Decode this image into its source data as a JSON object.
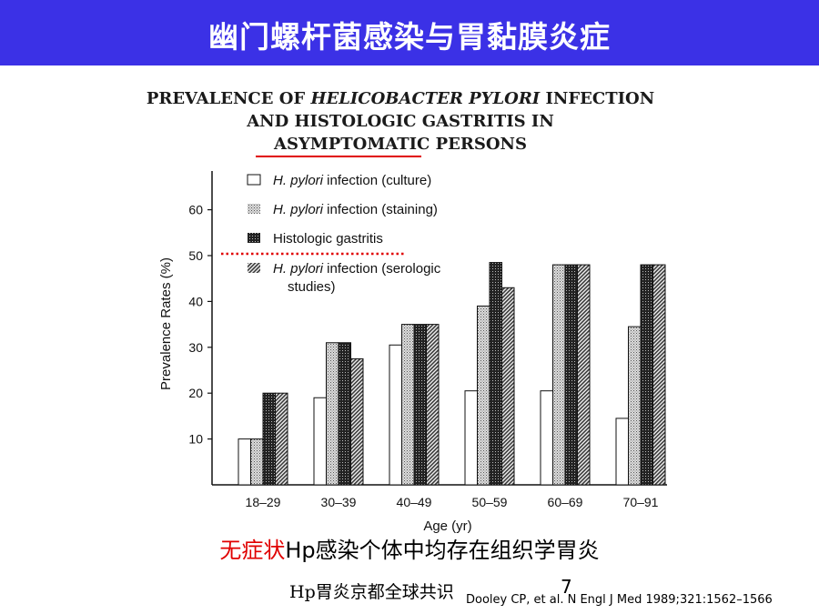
{
  "slide": {
    "title": "幽门螺杆菌感染与胃黏膜炎症",
    "caption_red": "无症状",
    "caption_rest": "Hp感染个体中均存在组织学胃炎",
    "footer_left": "Hp胃炎京都全球共识",
    "page_number": "7",
    "citation": "Dooley CP, et al. N Engl J Med 1989;321:1562–1566"
  },
  "colors": {
    "title_bar": "#3b31e6",
    "accent_red": "#e00000"
  },
  "chart_data": {
    "type": "bar",
    "title_lines": [
      "PREVALENCE OF ",
      "HELICOBACTER PYLORI",
      " INFECTION",
      "AND HISTOLOGIC GASTRITIS IN",
      "ASYMPTOMATIC PERSONS"
    ],
    "xlabel": "Age (yr)",
    "ylabel": "Prevalence Rates (%)",
    "categories": [
      "18–29",
      "30–39",
      "40–49",
      "50–59",
      "60–69",
      "70–91"
    ],
    "yticks": [
      "10",
      "20",
      "30",
      "40",
      "50",
      "60"
    ],
    "ylim": [
      0,
      70
    ],
    "reference_line_y": 50,
    "series": [
      {
        "name": "H. pylori infection (culture)",
        "name_italic": "H. pylori",
        "name_rest": " infection (culture)",
        "pattern": "white",
        "values": [
          10,
          19,
          30.5,
          20.5,
          20.5,
          14.5
        ]
      },
      {
        "name": "H. pylori infection (staining)",
        "name_italic": "H. pylori",
        "name_rest": " infection (staining)",
        "pattern": "stipple",
        "values": [
          10,
          31,
          35,
          39,
          48,
          34.5
        ]
      },
      {
        "name": "Histologic gastritis",
        "name_italic": "",
        "name_rest": "Histologic gastritis",
        "pattern": "dark",
        "values": [
          20,
          31,
          35,
          48.5,
          48,
          48
        ]
      },
      {
        "name": "H. pylori infection (serologic studies)",
        "name_italic": "H. pylori",
        "name_rest": " infection (serologic",
        "name_line2": "studies)",
        "pattern": "hatch",
        "values": [
          20,
          27.5,
          35,
          43,
          48,
          48
        ]
      }
    ]
  }
}
